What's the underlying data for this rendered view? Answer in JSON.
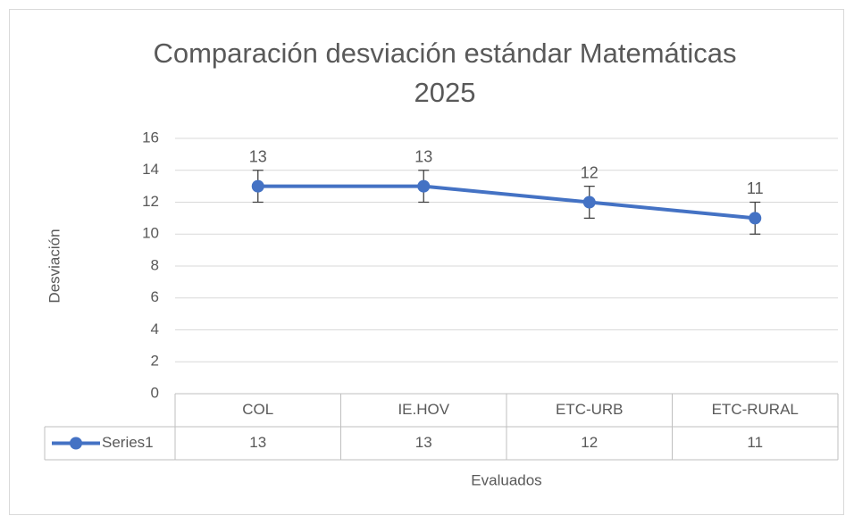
{
  "chart_data": {
    "type": "line",
    "title": "Comparación desviación estándar Matemáticas 2025",
    "x_label": "Evaluados",
    "y_label": "Desviación",
    "categories": [
      "COL",
      "IE.HOV",
      "ETC-URB",
      "ETC-RURAL"
    ],
    "series": [
      {
        "name": "Series1",
        "color": "#4472c4",
        "values": [
          13,
          13,
          12,
          11
        ],
        "errors": [
          1,
          1,
          1,
          1
        ]
      }
    ],
    "ylim": [
      0,
      16
    ],
    "yticks": [
      0,
      2,
      4,
      6,
      8,
      10,
      12,
      14,
      16
    ],
    "grid": true,
    "data_table": true
  }
}
